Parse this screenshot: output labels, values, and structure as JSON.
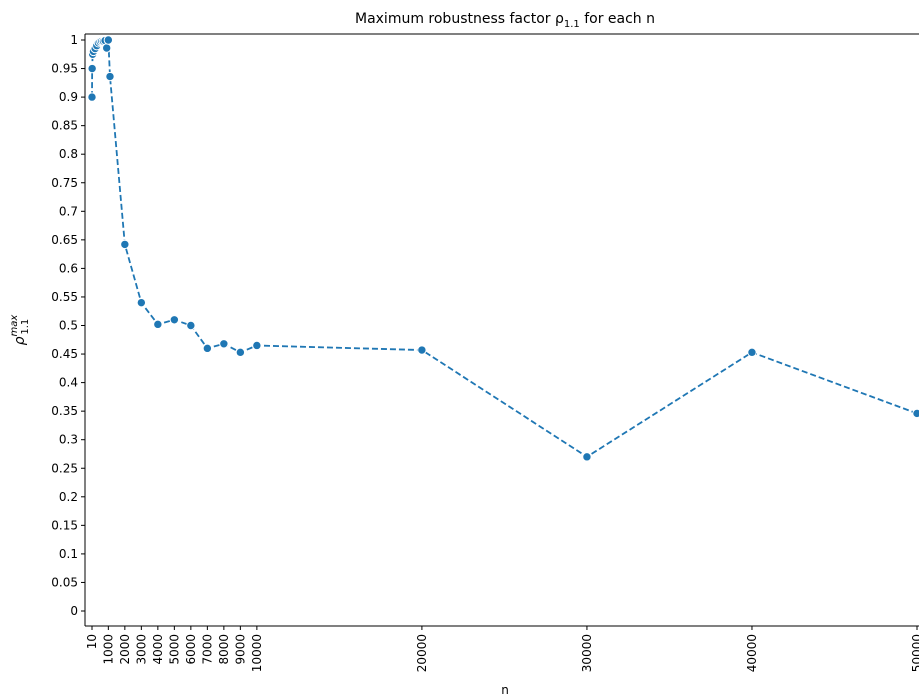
{
  "chart_data": {
    "type": "line",
    "title": "Maximum robustness factor ρ",
    "title_subscript": "1.1",
    "title_suffix": " for each n",
    "xlabel": "n",
    "ylabel_main": "ρ",
    "ylabel_sup": "max",
    "ylabel_sub": "1.1",
    "xlim": [
      -300,
      50000
    ],
    "ylim": [
      -0.01,
      1.01
    ],
    "x_ticks": [
      10,
      1000,
      2000,
      3000,
      4000,
      5000,
      6000,
      7000,
      8000,
      9000,
      10000,
      20000,
      30000,
      40000,
      50000
    ],
    "y_ticks": [
      0,
      0.05,
      0.1,
      0.15,
      0.2,
      0.25,
      0.3,
      0.35,
      0.4,
      0.45,
      0.5,
      0.55,
      0.6,
      0.65,
      0.7,
      0.75,
      0.8,
      0.85,
      0.9,
      0.95,
      1
    ],
    "series": [
      {
        "color": "#1f77b4",
        "line_style": "dashed",
        "marker": "circle",
        "points": [
          {
            "x": 10,
            "y": 0.9
          },
          {
            "x": 20,
            "y": 0.95
          },
          {
            "x": 50,
            "y": 0.975
          },
          {
            "x": 100,
            "y": 0.98
          },
          {
            "x": 200,
            "y": 0.985
          },
          {
            "x": 300,
            "y": 0.99
          },
          {
            "x": 400,
            "y": 0.995
          },
          {
            "x": 500,
            "y": 0.997
          },
          {
            "x": 600,
            "y": 0.998
          },
          {
            "x": 700,
            "y": 0.998
          },
          {
            "x": 800,
            "y": 0.999
          },
          {
            "x": 900,
            "y": 0.986
          },
          {
            "x": 1000,
            "y": 1.0
          },
          {
            "x": 1100,
            "y": 0.936
          },
          {
            "x": 2000,
            "y": 0.642
          },
          {
            "x": 3000,
            "y": 0.54
          },
          {
            "x": 4000,
            "y": 0.502
          },
          {
            "x": 5000,
            "y": 0.51
          },
          {
            "x": 6000,
            "y": 0.5
          },
          {
            "x": 7000,
            "y": 0.46
          },
          {
            "x": 8000,
            "y": 0.468
          },
          {
            "x": 9000,
            "y": 0.453
          },
          {
            "x": 10000,
            "y": 0.465
          },
          {
            "x": 20000,
            "y": 0.457
          },
          {
            "x": 30000,
            "y": 0.27
          },
          {
            "x": 40000,
            "y": 0.453
          },
          {
            "x": 50000,
            "y": 0.346
          }
        ]
      }
    ]
  }
}
